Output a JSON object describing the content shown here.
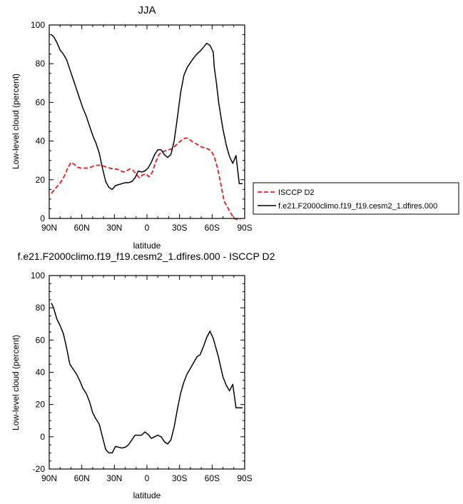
{
  "chart_data": [
    {
      "type": "line",
      "title": "JJA",
      "xlabel": "latitude",
      "ylabel": "Low-level cloud (percent)",
      "xlim": [
        -90,
        90
      ],
      "ylim": [
        0,
        100
      ],
      "xticks": [
        -90,
        -60,
        -30,
        0,
        30,
        60,
        90
      ],
      "xtick_labels": [
        "90N",
        "60N",
        "30N",
        "0",
        "30S",
        "60S",
        "90S"
      ],
      "yticks": [
        0,
        20,
        40,
        60,
        80,
        100
      ],
      "ytick_labels": [
        "0",
        "20",
        "40",
        "60",
        "80",
        "100"
      ],
      "legend_position": "right",
      "series": [
        {
          "name": "ISCCP D2",
          "color": "#e41a1c",
          "dash": "dashed",
          "x": [
            -88,
            -85,
            -82,
            -79,
            -76,
            -73,
            -70,
            -67,
            -64,
            -61,
            -58,
            -55,
            -52,
            -49,
            -46,
            -43,
            -40,
            -37,
            -34,
            -31,
            -28,
            -25,
            -22,
            -19,
            -16,
            -13,
            -10,
            -7,
            -4,
            -1,
            2,
            5,
            8,
            11,
            14,
            17,
            20,
            23,
            26,
            29,
            32,
            35,
            38,
            41,
            44,
            47,
            50,
            53,
            56,
            59,
            62,
            65,
            68,
            71,
            74,
            77,
            80,
            83,
            86
          ],
          "values": [
            13,
            15,
            17,
            19,
            22,
            26,
            29,
            28,
            26.5,
            26,
            26,
            26,
            26.5,
            27,
            27.5,
            27.5,
            27,
            26.5,
            26,
            25.5,
            25.5,
            25,
            24,
            24.5,
            25.5,
            25,
            23,
            21,
            22.5,
            23,
            21.5,
            24,
            29,
            33,
            34.5,
            35,
            35.5,
            36,
            37.5,
            39,
            40.5,
            41.5,
            41.5,
            40,
            39,
            38,
            37,
            36.5,
            36,
            35,
            32,
            26,
            18,
            9,
            6,
            3,
            0,
            -0.5,
            -0.5
          ]
        },
        {
          "name": "f.e21.F2000climo.f19_f19.cesm2_1.dfires.000",
          "color": "#000000",
          "dash": "solid",
          "x": [
            -88,
            -86,
            -83,
            -80,
            -77,
            -74,
            -71,
            -68,
            -65,
            -62,
            -59,
            -56,
            -53,
            -50,
            -47,
            -44,
            -41,
            -38,
            -35,
            -32,
            -29,
            -26,
            -23,
            -20,
            -17,
            -14,
            -11,
            -8,
            -5,
            -2,
            1,
            4,
            7,
            10,
            13,
            16,
            19,
            22,
            25,
            28,
            31,
            34,
            37,
            40,
            43,
            46,
            49,
            52,
            55,
            58,
            61,
            62,
            64,
            66,
            68,
            70,
            73,
            76,
            79,
            82,
            85,
            88
          ],
          "values": [
            95,
            94,
            91,
            87,
            85,
            82,
            77,
            72,
            67,
            62,
            57,
            53,
            48,
            43,
            39,
            34,
            26,
            19,
            16,
            15,
            17,
            17.5,
            18,
            18.5,
            18.5,
            19,
            21,
            24.5,
            24,
            24.5,
            26,
            29,
            33,
            35.5,
            35.5,
            33,
            31.5,
            33,
            40,
            52,
            65,
            74,
            78,
            80.5,
            83,
            85,
            86.5,
            88.5,
            90.5,
            89.5,
            86,
            78,
            70,
            60,
            53,
            46,
            38,
            32,
            28.5,
            32.5,
            18,
            18
          ]
        }
      ]
    },
    {
      "type": "line",
      "title": "f.e21.F2000climo.f19_f19.cesm2_1.dfires.000 - ISCCP D2",
      "xlabel": "latitude",
      "ylabel": "Low-level cloud (percent)",
      "xlim": [
        -90,
        90
      ],
      "ylim": [
        -20,
        100
      ],
      "xticks": [
        -90,
        -60,
        -30,
        0,
        30,
        60,
        90
      ],
      "xtick_labels": [
        "90N",
        "60N",
        "30N",
        "0",
        "30S",
        "60S",
        "90S"
      ],
      "yticks": [
        -20,
        0,
        20,
        40,
        60,
        80,
        100
      ],
      "ytick_labels": [
        "-20",
        "0",
        "20",
        "40",
        "60",
        "80",
        "100"
      ],
      "series": [
        {
          "name": "f.e21.F2000climo.f19_f19.cesm2_1.dfires.000 - ISCCP D2",
          "color": "#000000",
          "dash": "solid",
          "x": [
            -88,
            -86,
            -83,
            -80,
            -77,
            -74,
            -71,
            -68,
            -65,
            -62,
            -59,
            -56,
            -53,
            -50,
            -47,
            -44,
            -41,
            -38,
            -35,
            -32,
            -29,
            -26,
            -23,
            -20,
            -17,
            -14,
            -11,
            -8,
            -5,
            -2,
            1,
            4,
            7,
            10,
            13,
            16,
            19,
            22,
            25,
            28,
            31,
            34,
            37,
            40,
            43,
            46,
            49,
            52,
            55,
            58,
            61,
            64,
            66,
            68,
            70,
            73,
            76,
            79,
            82,
            85,
            88
          ],
          "values": [
            83,
            80,
            73,
            69,
            64,
            55,
            45,
            42,
            39,
            35,
            30,
            27,
            22,
            15,
            11,
            8,
            0,
            -8,
            -10,
            -10,
            -6,
            -6.5,
            -7,
            -6.5,
            -5,
            -2,
            1,
            1,
            1,
            3,
            1.5,
            -1,
            0,
            1,
            0,
            -3,
            -4.5,
            -2,
            6,
            17,
            27,
            34,
            39,
            42.5,
            46,
            49.5,
            51,
            56,
            61.5,
            65.5,
            61,
            54,
            49,
            43,
            37,
            32,
            28.5,
            32.5,
            18,
            18,
            18
          ]
        }
      ]
    }
  ]
}
